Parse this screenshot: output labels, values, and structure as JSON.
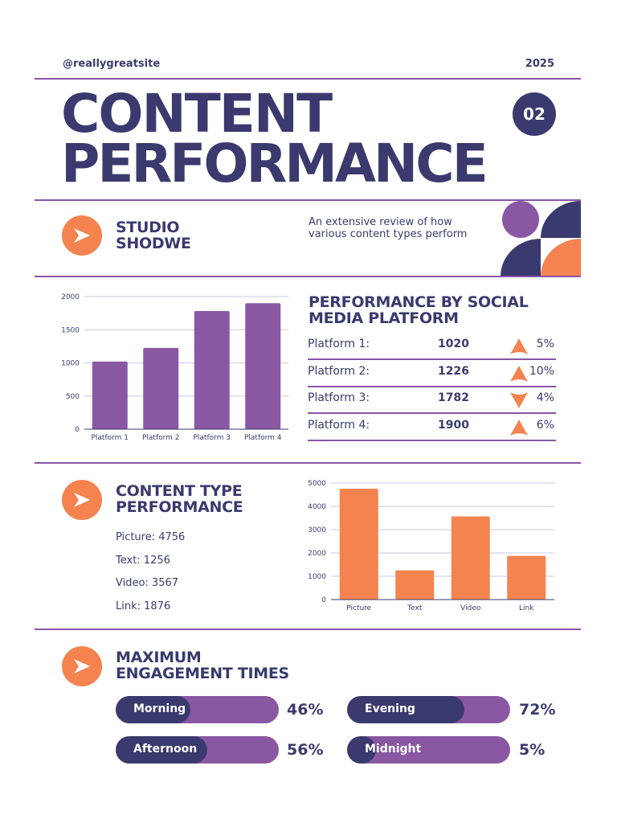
{
  "header": {
    "site": "@reallygreatsite",
    "year": "2025"
  },
  "title": {
    "line1": "CONTENT",
    "line2": "PERFORMANCE",
    "badge": "02"
  },
  "intro": {
    "heading_line1": "STUDIO",
    "heading_line2": "SHODWE",
    "description": "An extensive review of how various content types perform",
    "icon": "chevron-right-icon"
  },
  "colors": {
    "navy": "#3b3a6e",
    "purple": "#8a58a3",
    "orange": "#f4834f",
    "line": "#8a55a8"
  },
  "platform_section": {
    "heading": "PERFORMANCE BY SOCIAL MEDIA PLATFORM",
    "rows": [
      {
        "label": "Platform 1:",
        "value": "1020",
        "trend": "up",
        "change": "5%"
      },
      {
        "label": "Platform 2:",
        "value": "1226",
        "trend": "up",
        "change": "10%"
      },
      {
        "label": "Platform 3:",
        "value": "1782",
        "trend": "down",
        "change": "4%"
      },
      {
        "label": "Platform 4:",
        "value": "1900",
        "trend": "up",
        "change": "6%"
      }
    ]
  },
  "content_section": {
    "heading_line1": "CONTENT TYPE",
    "heading_line2": "PERFORMANCE",
    "items": [
      "Picture: 4756",
      "Text: 1256",
      "Video: 3567",
      "Link: 1876"
    ]
  },
  "engagement": {
    "heading_line1": "MAXIMUM",
    "heading_line2": "ENGAGEMENT TIMES",
    "bars": [
      {
        "label": "Morning",
        "value": 46,
        "text": "46%"
      },
      {
        "label": "Evening",
        "value": 72,
        "text": "72%"
      },
      {
        "label": "Afternoon",
        "value": 56,
        "text": "56%"
      },
      {
        "label": "Midnight",
        "value": 5,
        "text": "5%"
      }
    ]
  },
  "chart_data": [
    {
      "type": "bar",
      "categories": [
        "Platform 1",
        "Platform 2",
        "Platform 3",
        "Platform 4"
      ],
      "values": [
        1020,
        1226,
        1782,
        1900
      ],
      "ylim": [
        0,
        2000
      ],
      "yticks": [
        0,
        500,
        1000,
        1500,
        2000
      ],
      "grid": true,
      "color": "#8a58a3"
    },
    {
      "type": "bar",
      "categories": [
        "Picture",
        "Text",
        "Video",
        "Link"
      ],
      "values": [
        4756,
        1256,
        3567,
        1876
      ],
      "ylim": [
        0,
        5000
      ],
      "yticks": [
        0,
        1000,
        2000,
        3000,
        4000,
        5000
      ],
      "grid": true,
      "color": "#f4834f"
    }
  ]
}
